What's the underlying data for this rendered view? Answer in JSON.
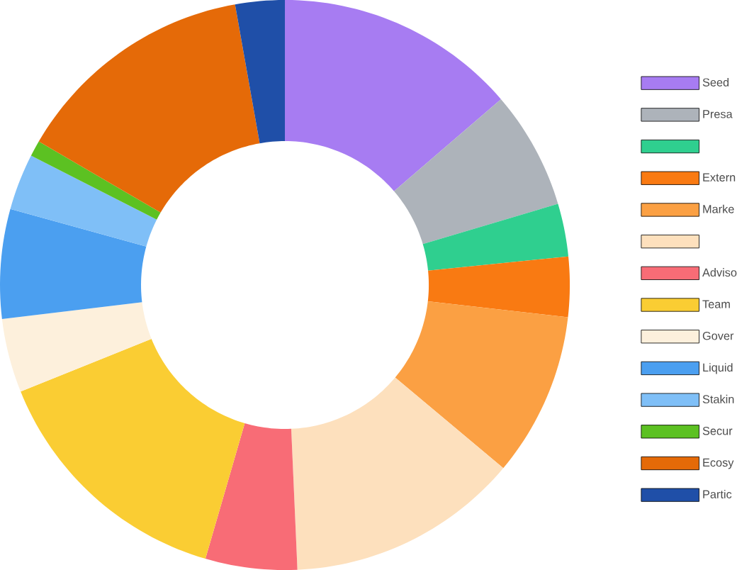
{
  "chart_data": {
    "type": "donut",
    "categories": [
      "Seed",
      "Presa",
      null,
      "Extern",
      "Marke",
      null,
      "Adviso",
      "Team",
      "Gover",
      "Liquid",
      "Stakin",
      "Secur",
      "Ecosy",
      "Partic"
    ],
    "values": [
      13.7,
      6.7,
      3.0,
      3.4,
      9.3,
      13.2,
      5.2,
      14.4,
      4.2,
      6.2,
      3.2,
      0.9,
      13.8,
      2.8
    ],
    "colors": [
      "#a77cf2",
      "#adb3ba",
      "#2fcf8f",
      "#f97a12",
      "#fba043",
      "#fde0bd",
      "#f86c76",
      "#facd33",
      "#fdf0dc",
      "#4b9ff0",
      "#7fbff7",
      "#5cc122",
      "#e56a08",
      "#1f4fa8"
    ],
    "legend": "right"
  }
}
